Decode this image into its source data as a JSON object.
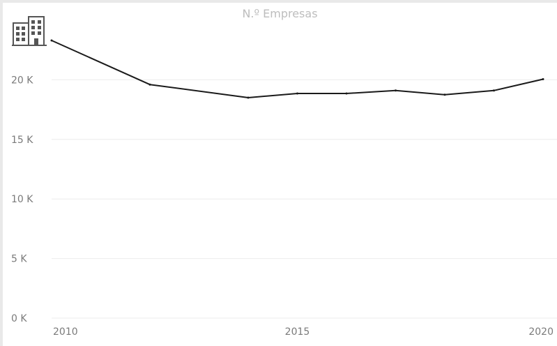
{
  "colors": {
    "background": "#ffffff",
    "line": "#1a1a1a",
    "grid": "#ececec",
    "title": "#bdbdbd",
    "ticks": "#7a7a7a"
  },
  "icon": "building-icon",
  "chart_data": {
    "type": "line",
    "title": "N.º Empresas",
    "xlabel": "",
    "ylabel": "",
    "x": [
      2010,
      2012,
      2014,
      2015,
      2016,
      2017,
      2018,
      2019,
      2020
    ],
    "series": [
      {
        "values": [
          23300,
          19600,
          18500,
          18850,
          18850,
          19100,
          18750,
          19100,
          20050
        ]
      }
    ],
    "xlim": [
      2010,
      2020
    ],
    "ylim": [
      0,
      25000
    ],
    "y_ticks": [
      0,
      5000,
      10000,
      15000,
      20000
    ],
    "y_tick_labels": [
      "0 K",
      "5 K",
      "10 K",
      "15 K",
      "20 K"
    ],
    "x_ticks": [
      2010,
      2015,
      2020
    ],
    "x_tick_labels": [
      "2010",
      "2015",
      "2020"
    ],
    "grid": "horizontal"
  }
}
